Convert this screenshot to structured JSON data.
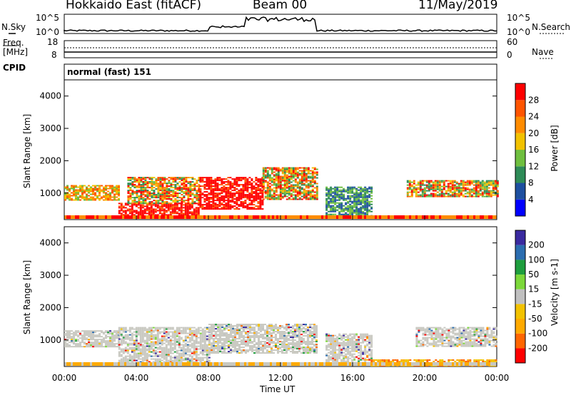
{
  "header": {
    "title": "Hokkaido East (fitACF)",
    "beam": "Beam 00",
    "date": "11/May/2019"
  },
  "panels": {
    "nsky": {
      "label": "N.Sky",
      "ticks": [
        "10^5",
        "10^0"
      ]
    },
    "nsearch": {
      "label": "N.Search",
      "ticks": [
        "10^5",
        "10^0"
      ]
    },
    "freq": {
      "label_line1": "Freq.",
      "label_line2": "[MHz]",
      "ticks": [
        "18",
        "8"
      ]
    },
    "nave": {
      "label": "Nave",
      "ticks": [
        "60",
        "0"
      ]
    },
    "cpid": {
      "label": "CPID",
      "text": "normal (fast) 151"
    }
  },
  "colors": {
    "power": [
      "#0000ff",
      "#1d4fa0",
      "#2e8b57",
      "#6fbf3f",
      "#f2c200",
      "#ff8c00",
      "#ff5500",
      "#ff0000"
    ],
    "velocity": [
      "#ff0000",
      "#ff6600",
      "#ffaa00",
      "#f2c200",
      "#c0c0c0",
      "#7cd83a",
      "#1e9e3e",
      "#2b6db0",
      "#3a2aa0"
    ],
    "ground": "#c8c8c0"
  },
  "chart_data": [
    {
      "type": "heatmap",
      "title": "Power",
      "ylabel": "Slant Range [km]",
      "xlabel": "Time UT",
      "x_ticks": [
        "00:00",
        "04:00",
        "08:00",
        "12:00",
        "16:00",
        "20:00",
        "00:00"
      ],
      "xlim_hours": [
        0,
        24
      ],
      "ylim": [
        180,
        4500
      ],
      "y_ticks": [
        1000,
        2000,
        3000,
        4000
      ],
      "colorbar": {
        "label": "Power [dB]",
        "ticks": [
          4,
          8,
          12,
          16,
          20,
          24,
          28
        ]
      },
      "regions": [
        {
          "t": [
            0.0,
            3.0
          ],
          "r": [
            800,
            1250
          ],
          "level": "mid"
        },
        {
          "t": [
            3.0,
            7.5
          ],
          "r": [
            250,
            700
          ],
          "level": "high"
        },
        {
          "t": [
            3.5,
            7.5
          ],
          "r": [
            700,
            1500
          ],
          "level": "mixed"
        },
        {
          "t": [
            7.5,
            11.0
          ],
          "r": [
            500,
            1500
          ],
          "level": "high"
        },
        {
          "t": [
            11.0,
            14.0
          ],
          "r": [
            800,
            1800
          ],
          "level": "mixed"
        },
        {
          "t": [
            14.5,
            17.0
          ],
          "r": [
            300,
            1200
          ],
          "level": "low"
        },
        {
          "t": [
            19.0,
            24.0
          ],
          "r": [
            900,
            1400
          ],
          "level": "mixed"
        }
      ]
    },
    {
      "type": "heatmap",
      "title": "Velocity",
      "ylabel": "Slant Range [km]",
      "xlabel": "Time UT",
      "x_ticks": [
        "00:00",
        "04:00",
        "08:00",
        "12:00",
        "16:00",
        "20:00",
        "00:00"
      ],
      "xlim_hours": [
        0,
        24
      ],
      "ylim": [
        180,
        4500
      ],
      "y_ticks": [
        1000,
        2000,
        3000,
        4000
      ],
      "colorbar": {
        "label": "Velocity [m s-1]",
        "ticks": [
          200,
          100,
          50,
          15,
          -15,
          -50,
          -100,
          -200
        ]
      },
      "regions": [
        {
          "t": [
            0.0,
            3.0
          ],
          "r": [
            800,
            1300
          ],
          "level": "ground"
        },
        {
          "t": [
            3.0,
            8.0
          ],
          "r": [
            300,
            1400
          ],
          "level": "ground"
        },
        {
          "t": [
            8.0,
            14.0
          ],
          "r": [
            600,
            1500
          ],
          "level": "ground"
        },
        {
          "t": [
            14.5,
            17.0
          ],
          "r": [
            300,
            1200
          ],
          "level": "ground"
        },
        {
          "t": [
            17.0,
            24.0
          ],
          "r": [
            180,
            400
          ],
          "level": "negative"
        },
        {
          "t": [
            19.5,
            24.0
          ],
          "r": [
            800,
            1400
          ],
          "level": "ground"
        }
      ]
    }
  ]
}
